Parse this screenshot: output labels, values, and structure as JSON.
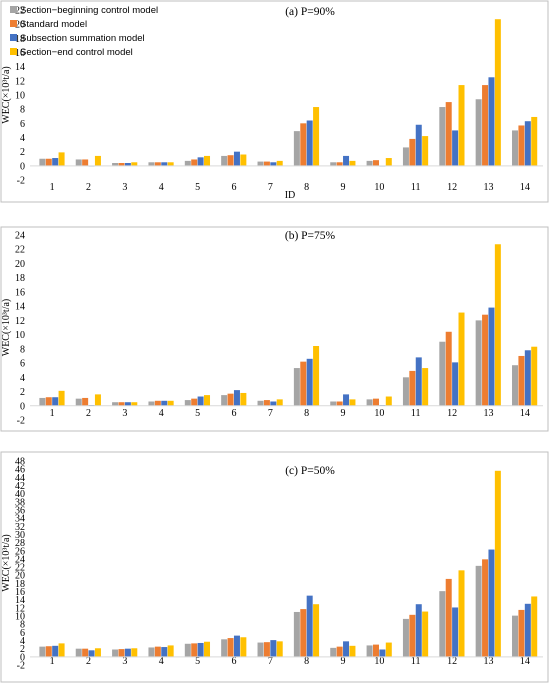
{
  "chart_data": [
    {
      "type": "bar",
      "title": "(a) P=90%",
      "xlabel": "ID",
      "ylabel": "WEC(×10³t/a)",
      "categories": [
        "1",
        "2",
        "3",
        "4",
        "5",
        "6",
        "7",
        "8",
        "9",
        "10",
        "11",
        "12",
        "13",
        "14"
      ],
      "ylim": [
        -2,
        22
      ],
      "ytick_step": 2,
      "grid": false,
      "legend": "top-left",
      "series": [
        {
          "name": "Section−beginning control model",
          "color": "#a5a5a5",
          "values": [
            1.0,
            0.9,
            0.4,
            0.5,
            0.7,
            1.4,
            0.6,
            4.9,
            0.5,
            0.7,
            2.6,
            8.3,
            9.4,
            5.0
          ]
        },
        {
          "name": "Standard model",
          "color": "#ed7d31",
          "values": [
            1.0,
            0.9,
            0.4,
            0.5,
            0.9,
            1.5,
            0.6,
            6.0,
            0.5,
            0.8,
            3.8,
            9.0,
            11.4,
            5.7
          ]
        },
        {
          "name": "Subsection summation model",
          "color": "#4472c4",
          "values": [
            1.1,
            0.0,
            0.4,
            0.5,
            1.2,
            2.0,
            0.5,
            6.4,
            1.4,
            0.0,
            5.8,
            5.0,
            12.5,
            6.3
          ]
        },
        {
          "name": "Section−end control model",
          "color": "#ffc000",
          "values": [
            1.9,
            1.4,
            0.5,
            0.5,
            1.4,
            1.6,
            0.7,
            8.3,
            0.7,
            1.1,
            4.2,
            11.4,
            20.7,
            6.9
          ]
        }
      ]
    },
    {
      "type": "bar",
      "title": "(b) P=75%",
      "xlabel": "",
      "ylabel": "WEC(×10³t/a)",
      "categories": [
        "1",
        "2",
        "3",
        "4",
        "5",
        "6",
        "7",
        "8",
        "9",
        "10",
        "11",
        "12",
        "13",
        "14"
      ],
      "ylim": [
        -2,
        24
      ],
      "ytick_step": 2,
      "grid": false,
      "series": [
        {
          "name": "Section−beginning control model",
          "color": "#a5a5a5",
          "values": [
            1.1,
            1.0,
            0.5,
            0.6,
            0.8,
            1.5,
            0.7,
            5.3,
            0.6,
            0.9,
            4.0,
            9.0,
            12.0,
            5.7
          ]
        },
        {
          "name": "Standard model",
          "color": "#ed7d31",
          "values": [
            1.2,
            1.1,
            0.5,
            0.7,
            1.0,
            1.7,
            0.8,
            6.2,
            0.6,
            1.0,
            4.9,
            10.4,
            12.8,
            7.0
          ]
        },
        {
          "name": "Subsection summation model",
          "color": "#4472c4",
          "values": [
            1.2,
            0.1,
            0.5,
            0.7,
            1.3,
            2.2,
            0.6,
            6.6,
            1.6,
            0.1,
            6.8,
            6.1,
            13.8,
            7.8
          ]
        },
        {
          "name": "Section−end control model",
          "color": "#ffc000",
          "values": [
            2.1,
            1.6,
            0.5,
            0.7,
            1.5,
            1.8,
            0.9,
            8.4,
            0.9,
            1.3,
            5.3,
            13.1,
            22.7,
            8.3
          ]
        }
      ]
    },
    {
      "type": "bar",
      "title": "(c) P=50%",
      "xlabel": "",
      "ylabel": "WEC(×10³t/a)",
      "categories": [
        "1",
        "2",
        "3",
        "4",
        "5",
        "6",
        "7",
        "8",
        "9",
        "10",
        "11",
        "12",
        "13",
        "14"
      ],
      "ylim": [
        -2,
        48
      ],
      "ytick_step": 2,
      "grid": false,
      "series": [
        {
          "name": "Section−beginning control model",
          "color": "#a5a5a5",
          "values": [
            2.5,
            2.0,
            1.8,
            2.3,
            3.2,
            4.3,
            3.5,
            11.0,
            2.2,
            2.8,
            9.3,
            16.1,
            22.3,
            10.1
          ]
        },
        {
          "name": "Standard model",
          "color": "#ed7d31",
          "values": [
            2.6,
            2.0,
            1.9,
            2.5,
            3.3,
            4.6,
            3.6,
            11.7,
            2.5,
            3.0,
            10.3,
            19.1,
            23.9,
            11.5
          ]
        },
        {
          "name": "Subsection summation model",
          "color": "#4472c4",
          "values": [
            2.7,
            1.6,
            2.0,
            2.4,
            3.4,
            5.2,
            4.1,
            15.0,
            3.8,
            1.8,
            12.9,
            12.1,
            26.3,
            13.0
          ]
        },
        {
          "name": "Section−end control model",
          "color": "#ffc000",
          "values": [
            3.3,
            2.1,
            2.1,
            2.8,
            3.7,
            4.8,
            3.8,
            12.9,
            2.7,
            3.5,
            11.1,
            21.2,
            45.6,
            14.8
          ]
        }
      ]
    }
  ]
}
